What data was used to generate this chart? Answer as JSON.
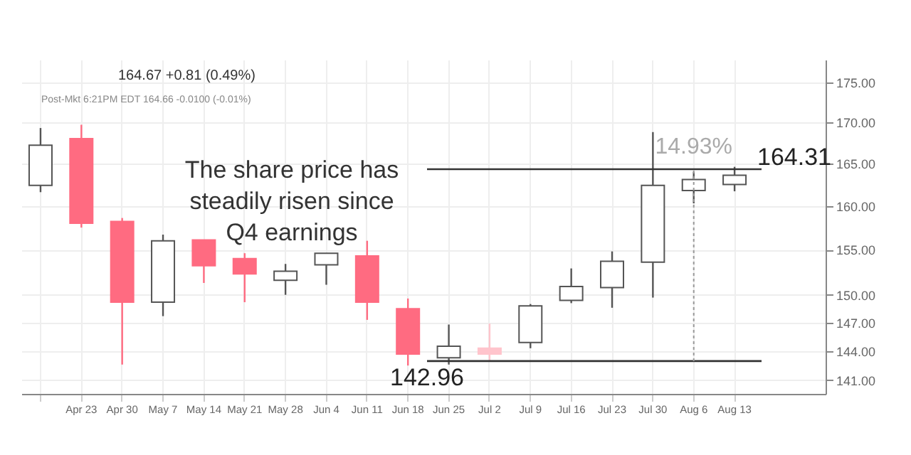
{
  "chart_data": {
    "type": "candlestick",
    "categories": [
      null,
      "Apr 23",
      "Apr 30",
      "May 7",
      "May 14",
      "May 21",
      "May 28",
      "Jun 4",
      "Jun 11",
      "Jun 18",
      "Jun 25",
      "Jul 2",
      "Jul 9",
      "Jul 16",
      "Jul 23",
      "Jul 30",
      "Aug 6",
      "Aug 13"
    ],
    "ohlc": [
      [
        162.4,
        169.3,
        161.6,
        167.2
      ],
      [
        168.0,
        169.7,
        157.5,
        158.0
      ],
      [
        158.2,
        158.6,
        142.6,
        149.2
      ],
      [
        149.2,
        156.7,
        147.7,
        156.0
      ],
      [
        156.1,
        156.1,
        151.3,
        153.2
      ],
      [
        154.0,
        154.6,
        149.2,
        152.3
      ],
      [
        151.6,
        153.4,
        150.0,
        152.6
      ],
      [
        153.3,
        154.6,
        151.1,
        154.6
      ],
      [
        154.3,
        156.0,
        147.3,
        149.2
      ],
      [
        148.5,
        149.6,
        142.5,
        143.7
      ],
      [
        143.3,
        146.8,
        142.6,
        144.5
      ],
      [
        144.3,
        146.9,
        143.0,
        143.7
      ],
      [
        144.9,
        149.0,
        144.3,
        148.8
      ],
      [
        149.4,
        152.9,
        149.1,
        150.9
      ],
      [
        150.8,
        154.8,
        148.6,
        153.7
      ],
      [
        153.6,
        168.8,
        149.7,
        162.4
      ],
      [
        161.8,
        164.0,
        160.3,
        163.1
      ],
      [
        162.5,
        164.6,
        161.7,
        163.6
      ]
    ],
    "colors": [
      "#ffffff",
      "#ff6b81",
      "#ff6b81",
      "#ffffff",
      "#ff6b81",
      "#ff6b81",
      "#ffffff",
      "#ffffff",
      "#ff6b81",
      "#ff6b81",
      "#ffffff",
      "#ffc4cc",
      "#ffffff",
      "#ffffff",
      "#ffffff",
      "#ffffff",
      "#ffffff",
      "#ffffff"
    ],
    "log": "y",
    "ylim": [
      139.6,
      177.9
    ],
    "yticks": [
      {
        "value": 141,
        "label": "141.00"
      },
      {
        "value": 144,
        "label": "144.00"
      },
      {
        "value": 147,
        "label": "147.00"
      },
      {
        "value": 150,
        "label": "150.00"
      },
      {
        "value": 155,
        "label": "155.00"
      },
      {
        "value": 160,
        "label": "160.00"
      },
      {
        "value": 165,
        "label": "165.00"
      },
      {
        "value": 170,
        "label": "170.00"
      },
      {
        "value": 175,
        "label": "175.00"
      }
    ],
    "grid": true,
    "ref_lines": [
      {
        "axis": "y",
        "value": 164.31,
        "label": "164.31"
      },
      {
        "axis": "y",
        "value": 142.96,
        "label": "142.96"
      }
    ],
    "annotations": [
      "164.67 +0.81 (0.49%)",
      "Post-Mkt 6:21PM EDT 164.66 -0.0100 (-0.01%)",
      "The share price has\nsteadily risen since\nQ4 earnings",
      {
        "text": "14.93%",
        "x": "Aug 6",
        "y": 164.31
      }
    ]
  }
}
